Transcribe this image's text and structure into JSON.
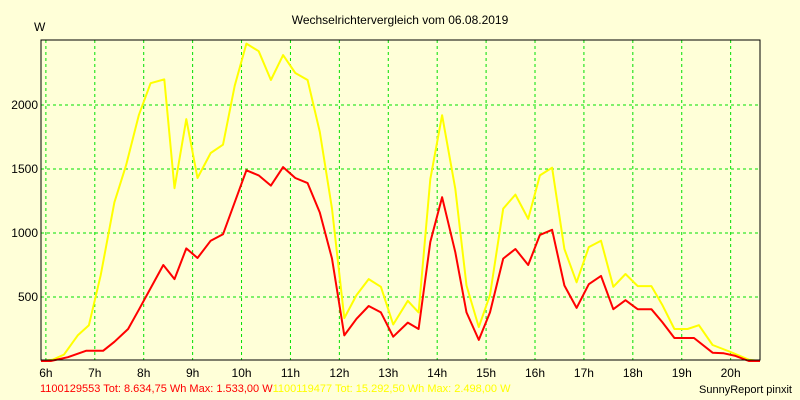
{
  "chart_data": {
    "type": "line",
    "title": "Wechselrichtervergleich vom 06.08.2019",
    "ylabel": "W",
    "xlabel": "",
    "xlim": [
      5.9,
      20.6
    ],
    "ylim": [
      0,
      2500
    ],
    "grid": true,
    "x_ticks": [
      6,
      7,
      8,
      9,
      10,
      11,
      12,
      13,
      14,
      15,
      16,
      17,
      18,
      19,
      20
    ],
    "x_tick_labels": [
      "6h",
      "7h",
      "8h",
      "9h",
      "10h",
      "11h",
      "12h",
      "13h",
      "14h",
      "15h",
      "16h",
      "17h",
      "18h",
      "19h",
      "20h"
    ],
    "y_ticks": [
      500,
      1000,
      1500,
      2000
    ],
    "y_tick_labels": [
      "500",
      "1000",
      "1500",
      "2000"
    ],
    "series": [
      {
        "name": "1100119477",
        "color": "#ffff00",
        "x": [
          5.9,
          6.14,
          6.37,
          6.65,
          6.88,
          7.12,
          7.4,
          7.64,
          7.9,
          8.14,
          8.42,
          8.63,
          8.87,
          9.1,
          9.37,
          9.62,
          9.86,
          10.1,
          10.35,
          10.6,
          10.85,
          11.1,
          11.35,
          11.6,
          11.85,
          12.1,
          12.35,
          12.6,
          12.85,
          13.1,
          13.4,
          13.62,
          13.86,
          14.1,
          14.37,
          14.6,
          14.85,
          15.08,
          15.35,
          15.6,
          15.86,
          16.1,
          16.35,
          16.6,
          16.85,
          17.1,
          17.35,
          17.6,
          17.85,
          18.1,
          18.38,
          18.6,
          18.85,
          19.12,
          19.35,
          19.63,
          20.0,
          20.37,
          20.6
        ],
        "y": [
          0,
          10,
          50,
          200,
          280,
          670,
          1240,
          1530,
          1920,
          2170,
          2200,
          1350,
          1890,
          1430,
          1625,
          1690,
          2150,
          2480,
          2420,
          2195,
          2390,
          2250,
          2195,
          1790,
          1190,
          335,
          515,
          640,
          580,
          285,
          470,
          380,
          1420,
          1920,
          1345,
          590,
          265,
          515,
          1190,
          1300,
          1110,
          1450,
          1510,
          875,
          615,
          890,
          940,
          580,
          680,
          585,
          585,
          440,
          250,
          250,
          280,
          125,
          70,
          10,
          0
        ]
      },
      {
        "name": "1100129553",
        "color": "#ff0000",
        "x": [
          5.9,
          6.1,
          6.45,
          6.82,
          7.17,
          7.4,
          7.68,
          7.9,
          8.1,
          8.4,
          8.63,
          8.87,
          9.1,
          9.37,
          9.62,
          10.1,
          10.35,
          10.6,
          10.85,
          11.1,
          11.35,
          11.6,
          11.85,
          12.1,
          12.35,
          12.6,
          12.85,
          13.1,
          13.4,
          13.62,
          13.86,
          14.1,
          14.37,
          14.6,
          14.85,
          15.08,
          15.35,
          15.6,
          15.86,
          16.1,
          16.35,
          16.6,
          16.85,
          17.1,
          17.35,
          17.6,
          17.85,
          18.1,
          18.38,
          18.6,
          18.85,
          19.25,
          19.63,
          19.86,
          20.1,
          20.37,
          20.6
        ],
        "y": [
          0,
          0,
          30,
          80,
          80,
          150,
          250,
          400,
          540,
          750,
          640,
          880,
          805,
          940,
          990,
          1490,
          1450,
          1370,
          1515,
          1430,
          1390,
          1160,
          800,
          200,
          330,
          430,
          380,
          190,
          300,
          250,
          930,
          1280,
          850,
          380,
          165,
          380,
          800,
          875,
          750,
          985,
          1025,
          590,
          415,
          600,
          665,
          405,
          475,
          405,
          405,
          305,
          180,
          180,
          65,
          60,
          40,
          0,
          0
        ]
      }
    ],
    "legend": [
      {
        "text": "1100129553 Tot: 8.634,75 Wh Max: 1.533,00 W",
        "color": "#ff0000"
      },
      {
        "text": "1100119477 Tot: 15.292,50 Wh Max: 2.498,00 W",
        "color": "#ffff00"
      }
    ],
    "legend_placement": "bottom-left"
  },
  "credit": "SunnyReport pinxit"
}
